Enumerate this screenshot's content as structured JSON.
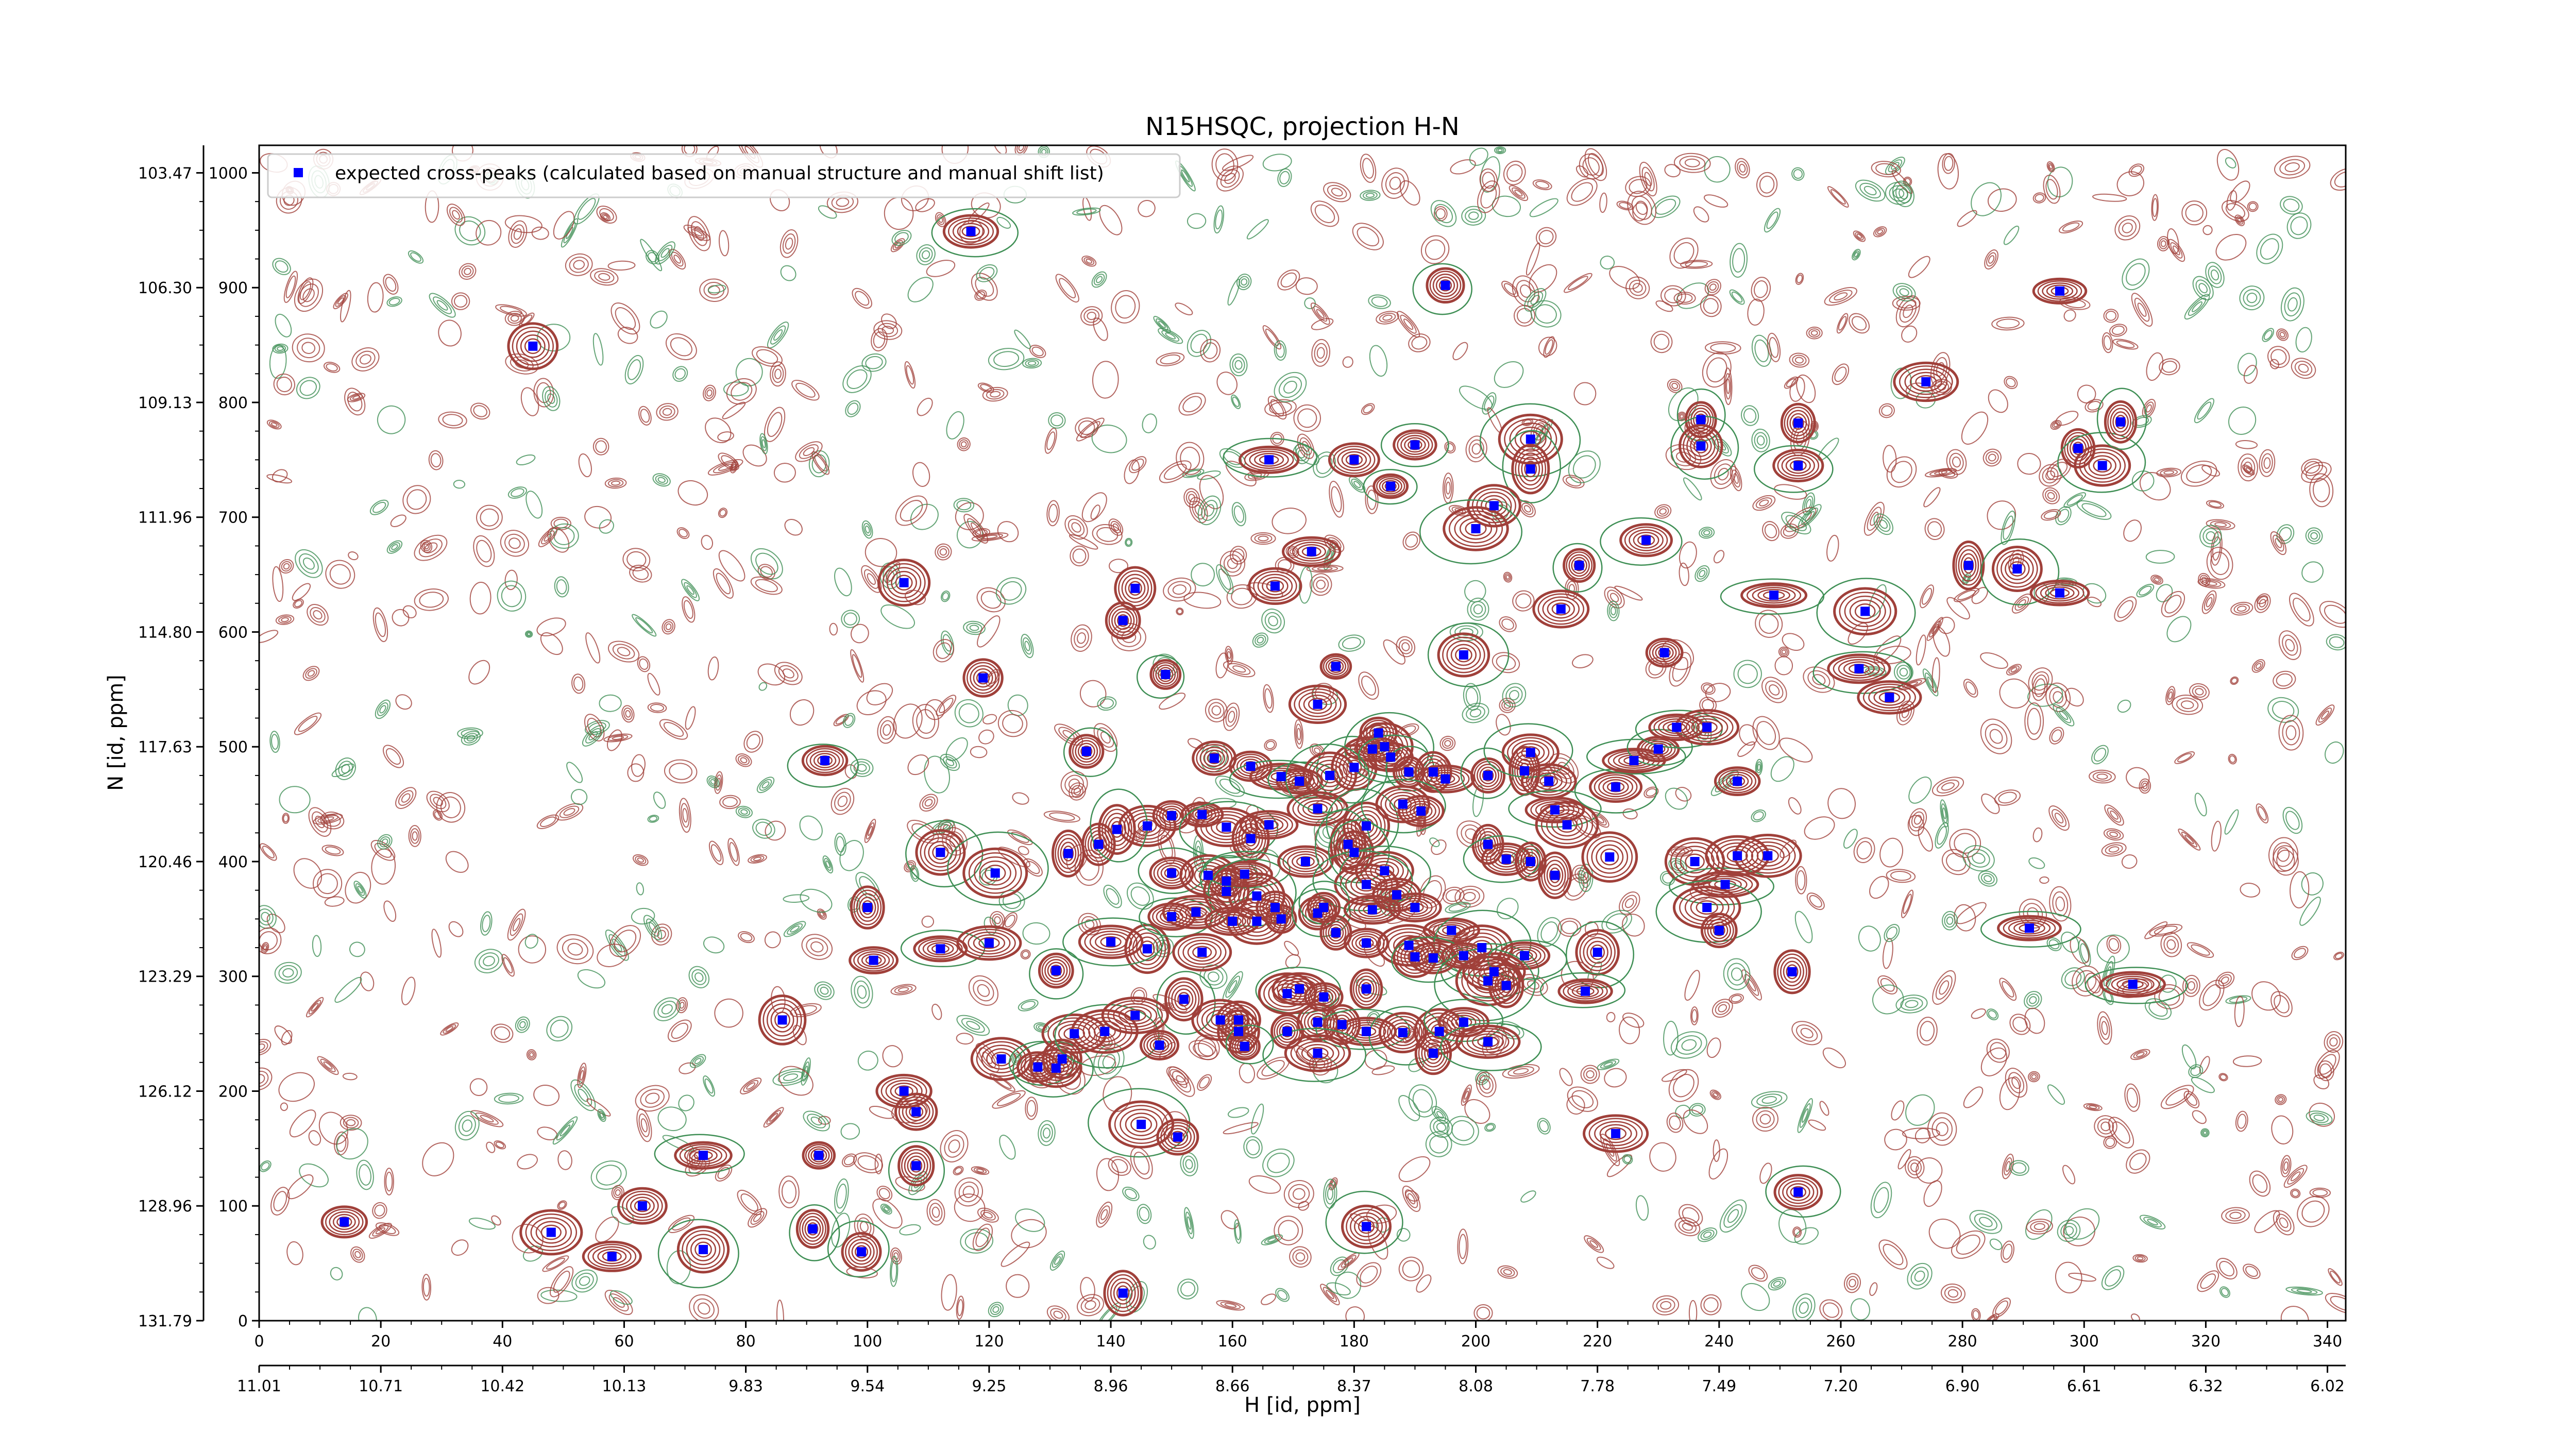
{
  "chart_data": {
    "type": "scatter",
    "title": "N15HSQC, projection H-N",
    "xlabel": "H [id, ppm]",
    "ylabel": "N [id, ppm]",
    "xlim": [
      0,
      343
    ],
    "ylim": [
      0,
      1024
    ],
    "x_ticks": [
      0,
      20,
      40,
      60,
      80,
      100,
      120,
      140,
      160,
      180,
      200,
      220,
      240,
      260,
      280,
      300,
      320,
      340
    ],
    "y_ticks": [
      0,
      100,
      200,
      300,
      400,
      500,
      600,
      700,
      800,
      900,
      1000
    ],
    "ppm_x_ticks": [
      {
        "pos": 0,
        "label": "11.01"
      },
      {
        "pos": 20,
        "label": "10.71"
      },
      {
        "pos": 40,
        "label": "10.42"
      },
      {
        "pos": 60,
        "label": "10.13"
      },
      {
        "pos": 80,
        "label": "9.83"
      },
      {
        "pos": 100,
        "label": "9.54"
      },
      {
        "pos": 120,
        "label": "9.25"
      },
      {
        "pos": 140,
        "label": "8.96"
      },
      {
        "pos": 160,
        "label": "8.66"
      },
      {
        "pos": 180,
        "label": "8.37"
      },
      {
        "pos": 200,
        "label": "8.08"
      },
      {
        "pos": 220,
        "label": "7.78"
      },
      {
        "pos": 240,
        "label": "7.49"
      },
      {
        "pos": 260,
        "label": "7.20"
      },
      {
        "pos": 280,
        "label": "6.90"
      },
      {
        "pos": 300,
        "label": "6.61"
      },
      {
        "pos": 320,
        "label": "6.32"
      },
      {
        "pos": 340,
        "label": "6.02"
      }
    ],
    "ppm_y_ticks": [
      {
        "pos": 1000,
        "label": "103.47"
      },
      {
        "pos": 900,
        "label": "106.30"
      },
      {
        "pos": 800,
        "label": "109.13"
      },
      {
        "pos": 700,
        "label": "111.96"
      },
      {
        "pos": 600,
        "label": "114.80"
      },
      {
        "pos": 500,
        "label": "117.63"
      },
      {
        "pos": 400,
        "label": "120.46"
      },
      {
        "pos": 300,
        "label": "123.29"
      },
      {
        "pos": 200,
        "label": "126.12"
      },
      {
        "pos": 100,
        "label": "128.96"
      },
      {
        "pos": 0,
        "label": "131.79"
      }
    ],
    "legend": {
      "position": "top-left",
      "label": "expected cross-peaks (calculated based on manual structure and manual shift list)"
    },
    "colors": {
      "positive_contour": "#a0403a",
      "negative_contour": "#3f8f55",
      "peak_marker": "#0000ff"
    },
    "series": [
      {
        "name": "expected cross-peaks (calculated based on manual structure and manual shift list)",
        "points": [
          [
            45,
            849
          ],
          [
            117,
            949
          ],
          [
            195,
            902
          ],
          [
            296,
            897
          ],
          [
            274,
            818
          ],
          [
            237,
            785
          ],
          [
            237,
            762
          ],
          [
            253,
            782
          ],
          [
            253,
            745
          ],
          [
            299,
            760
          ],
          [
            303,
            745
          ],
          [
            306,
            783
          ],
          [
            180,
            750
          ],
          [
            190,
            763
          ],
          [
            186,
            727
          ],
          [
            209,
            768
          ],
          [
            209,
            742
          ],
          [
            203,
            710
          ],
          [
            200,
            690
          ],
          [
            217,
            658
          ],
          [
            228,
            680
          ],
          [
            214,
            620
          ],
          [
            249,
            632
          ],
          [
            264,
            618
          ],
          [
            281,
            658
          ],
          [
            289,
            655
          ],
          [
            296,
            634
          ],
          [
            106,
            643
          ],
          [
            144,
            638
          ],
          [
            142,
            610
          ],
          [
            167,
            640
          ],
          [
            173,
            670
          ],
          [
            166,
            750
          ],
          [
            119,
            560
          ],
          [
            149,
            563
          ],
          [
            177,
            570
          ],
          [
            174,
            537
          ],
          [
            198,
            580
          ],
          [
            231,
            582
          ],
          [
            263,
            568
          ],
          [
            268,
            543
          ],
          [
            93,
            488
          ],
          [
            136,
            496
          ],
          [
            157,
            490
          ],
          [
            163,
            483
          ],
          [
            168,
            474
          ],
          [
            171,
            470
          ],
          [
            180,
            482
          ],
          [
            184,
            512
          ],
          [
            185,
            500
          ],
          [
            183,
            498
          ],
          [
            186,
            491
          ],
          [
            189,
            478
          ],
          [
            193,
            478
          ],
          [
            195,
            472
          ],
          [
            202,
            475
          ],
          [
            208,
            479
          ],
          [
            209,
            495
          ],
          [
            212,
            470
          ],
          [
            213,
            445
          ],
          [
            215,
            432
          ],
          [
            223,
            465
          ],
          [
            226,
            488
          ],
          [
            230,
            498
          ],
          [
            233,
            517
          ],
          [
            238,
            517
          ],
          [
            243,
            470
          ],
          [
            146,
            431
          ],
          [
            150,
            440
          ],
          [
            155,
            441
          ],
          [
            159,
            430
          ],
          [
            163,
            420
          ],
          [
            166,
            432
          ],
          [
            174,
            446
          ],
          [
            176,
            475
          ],
          [
            182,
            431
          ],
          [
            188,
            450
          ],
          [
            191,
            444
          ],
          [
            202,
            415
          ],
          [
            205,
            402
          ],
          [
            209,
            400
          ],
          [
            213,
            388
          ],
          [
            222,
            404
          ],
          [
            112,
            408
          ],
          [
            121,
            390
          ],
          [
            133,
            407
          ],
          [
            138,
            415
          ],
          [
            141,
            428
          ],
          [
            150,
            390
          ],
          [
            156,
            388
          ],
          [
            159,
            383
          ],
          [
            159,
            374
          ],
          [
            162,
            389
          ],
          [
            164,
            370
          ],
          [
            167,
            360
          ],
          [
            168,
            350
          ],
          [
            172,
            400
          ],
          [
            174,
            355
          ],
          [
            179,
            415
          ],
          [
            180,
            408
          ],
          [
            185,
            392
          ],
          [
            182,
            380
          ],
          [
            187,
            371
          ],
          [
            190,
            360
          ],
          [
            189,
            327
          ],
          [
            196,
            340
          ],
          [
            201,
            325
          ],
          [
            203,
            304
          ],
          [
            208,
            318
          ],
          [
            220,
            321
          ],
          [
            236,
            400
          ],
          [
            241,
            380
          ],
          [
            243,
            405
          ],
          [
            248,
            405
          ],
          [
            238,
            360
          ],
          [
            240,
            340
          ],
          [
            291,
            342
          ],
          [
            308,
            293
          ],
          [
            252,
            304
          ],
          [
            100,
            360
          ],
          [
            101,
            314
          ],
          [
            112,
            324
          ],
          [
            131,
            305
          ],
          [
            146,
            324
          ],
          [
            150,
            352
          ],
          [
            154,
            356
          ],
          [
            160,
            348
          ],
          [
            164,
            348
          ],
          [
            175,
            360
          ],
          [
            183,
            358
          ],
          [
            182,
            329
          ],
          [
            171,
            289
          ],
          [
            175,
            282
          ],
          [
            169,
            285
          ],
          [
            182,
            289
          ],
          [
            190,
            317
          ],
          [
            177,
            338
          ],
          [
            193,
            316
          ],
          [
            198,
            318
          ],
          [
            202,
            296
          ],
          [
            205,
            292
          ],
          [
            218,
            287
          ],
          [
            152,
            280
          ],
          [
            158,
            262
          ],
          [
            161,
            262
          ],
          [
            161,
            252
          ],
          [
            169,
            252
          ],
          [
            174,
            260
          ],
          [
            178,
            258
          ],
          [
            182,
            252
          ],
          [
            188,
            251
          ],
          [
            194,
            252
          ],
          [
            193,
            233
          ],
          [
            198,
            260
          ],
          [
            202,
            243
          ],
          [
            86,
            262
          ],
          [
            122,
            228
          ],
          [
            128,
            221
          ],
          [
            131,
            220
          ],
          [
            132,
            228
          ],
          [
            134,
            250
          ],
          [
            139,
            252
          ],
          [
            144,
            266
          ],
          [
            148,
            240
          ],
          [
            162,
            239
          ],
          [
            174,
            233
          ],
          [
            106,
            200
          ],
          [
            108,
            182
          ],
          [
            108,
            135
          ],
          [
            120,
            329
          ],
          [
            140,
            330
          ],
          [
            155,
            321
          ],
          [
            145,
            171
          ],
          [
            151,
            160
          ],
          [
            223,
            163
          ],
          [
            73,
            144
          ],
          [
            92,
            144
          ],
          [
            14,
            86
          ],
          [
            48,
            77
          ],
          [
            58,
            56
          ],
          [
            63,
            100
          ],
          [
            73,
            62
          ],
          [
            91,
            80
          ],
          [
            99,
            60
          ],
          [
            182,
            82
          ],
          [
            253,
            112
          ],
          [
            142,
            24
          ]
        ]
      }
    ]
  }
}
